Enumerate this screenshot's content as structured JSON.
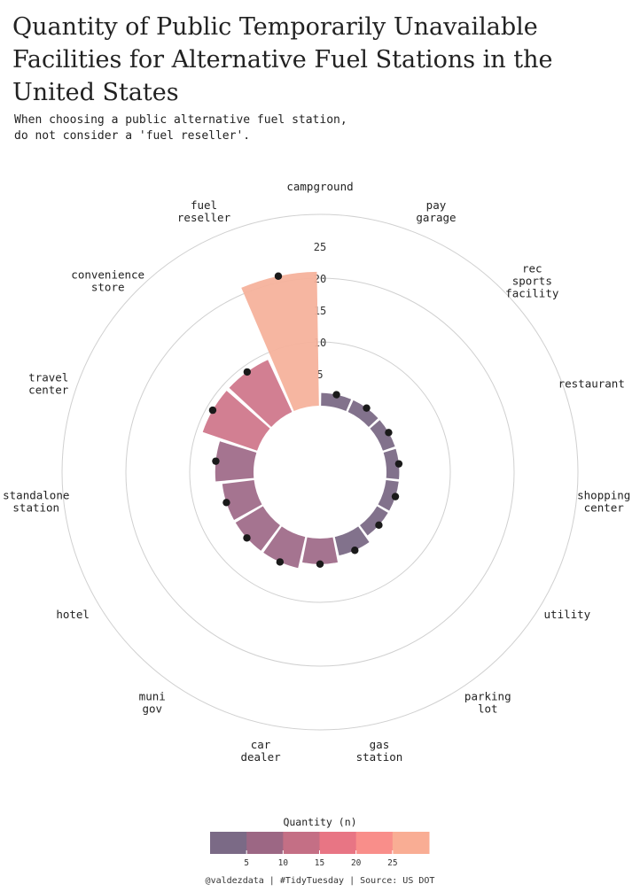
{
  "title": "Quantity of Public Temporarily Unavailable Facilities for Alternative Fuel Stations in the United States",
  "subtitle": "When choosing a public alternative fuel station,\n  do not consider a 'fuel reseller'.",
  "caption": "@valdezdata | #TidyTuesday | Source: US DOT",
  "chart_data": {
    "type": "bar",
    "polar": true,
    "categories": [
      "campground",
      "pay garage",
      "rec sports facility",
      "restaurant",
      "shopping center",
      "utility",
      "parking lot",
      "gas station",
      "car dealer",
      "muni gov",
      "hotel",
      "standalone station",
      "travel center",
      "convenience store",
      "fuel reseller"
    ],
    "values": [
      2,
      2,
      2,
      2,
      2,
      2,
      3,
      4,
      5,
      5,
      5,
      6,
      9,
      9,
      21
    ],
    "category_labels": {
      "campground": [
        "campground"
      ],
      "pay garage": [
        "pay",
        "garage"
      ],
      "rec sports facility": [
        "rec",
        "sports",
        "facility"
      ],
      "restaurant": [
        "restaurant"
      ],
      "shopping center": [
        "shopping",
        "center"
      ],
      "utility": [
        "utility"
      ],
      "parking lot": [
        "parking",
        "lot"
      ],
      "gas station": [
        "gas",
        "station"
      ],
      "car dealer": [
        "car",
        "dealer"
      ],
      "muni gov": [
        "muni",
        "gov"
      ],
      "hotel": [
        "hotel"
      ],
      "standalone station": [
        "standalone",
        "station"
      ],
      "travel center": [
        "travel",
        "center"
      ],
      "convenience store": [
        "convenience",
        "store"
      ],
      "fuel reseller": [
        "fuel",
        "reseller"
      ]
    },
    "radial_ticks": [
      "5",
      "10",
      "15",
      "20",
      "25"
    ],
    "rlim": [
      0,
      30
    ],
    "grid": true,
    "points_mark_value": true,
    "legend": {
      "title": "Quantity (n)",
      "position": "bottom",
      "ticks": [
        "5",
        "10",
        "15",
        "20",
        "25"
      ],
      "colors": [
        "#7b6a86",
        "#9c6784",
        "#c46f85",
        "#e87584",
        "#f98e8a",
        "#f9ad94"
      ]
    },
    "colors": {
      "low": "#7b6a86",
      "mid": "#a06d8a",
      "high": "#d0788c",
      "max": "#f6b29c",
      "point": "#1a1a1a",
      "grid": "#d0d0d0"
    }
  }
}
